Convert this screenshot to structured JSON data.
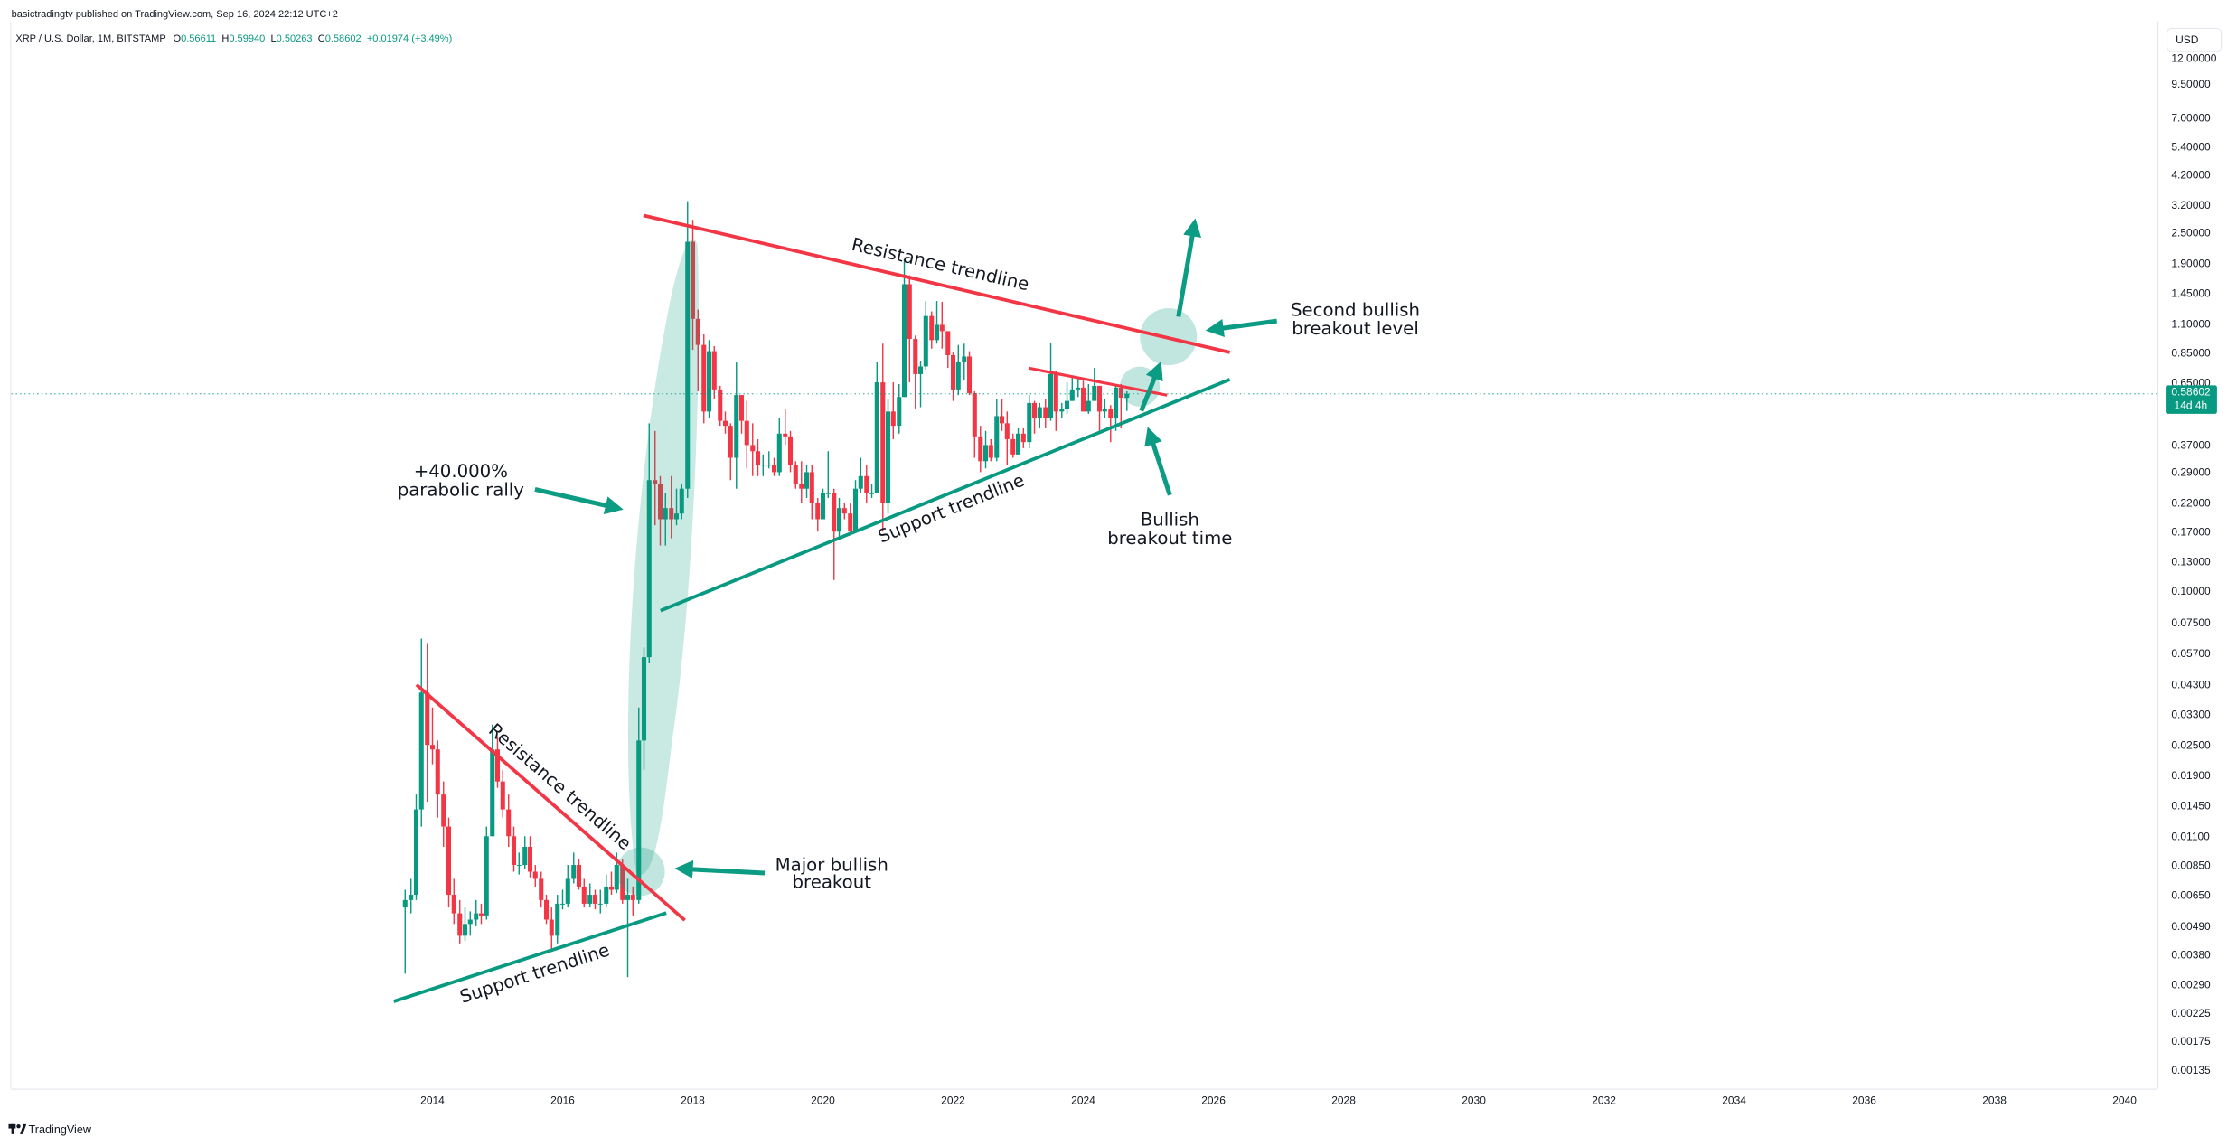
{
  "header": {
    "publisher": "basictradingtv published on TradingView.com, Sep 16, 2024 22:12 UTC+2",
    "symbol": "XRP / U.S. Dollar, 1M, BITSTAMP",
    "ohlc": [
      {
        "label": "O",
        "value": "0.56611"
      },
      {
        "label": "H",
        "value": "0.59940"
      },
      {
        "label": "L",
        "value": "0.50263"
      },
      {
        "label": "C",
        "value": "0.58602"
      }
    ],
    "change": "+0.01974 (+3.49%)"
  },
  "currency": "USD",
  "brand": "TradingView",
  "chart_data": {
    "type": "candlestick",
    "log_scale": true,
    "up_color": "#089981",
    "down_color": "#f23645",
    "xlim": [
      2007.53,
      2040.5
    ],
    "xticks": [
      2014,
      2016,
      2018,
      2020,
      2022,
      2024,
      2026,
      2028,
      2030,
      2032,
      2034,
      2036,
      2038,
      2040
    ],
    "ylim": [
      0.00114,
      16.66
    ],
    "yticks": [
      {
        "value": 12,
        "label": "12.00000"
      },
      {
        "value": 9.5,
        "label": "9.50000"
      },
      {
        "value": 7,
        "label": "7.00000"
      },
      {
        "value": 5.4,
        "label": "5.40000"
      },
      {
        "value": 4.2,
        "label": "4.20000"
      },
      {
        "value": 3.2,
        "label": "3.20000"
      },
      {
        "value": 2.5,
        "label": "2.50000"
      },
      {
        "value": 1.9,
        "label": "1.90000"
      },
      {
        "value": 1.45,
        "label": "1.45000"
      },
      {
        "value": 1.1,
        "label": "1.10000"
      },
      {
        "value": 0.85,
        "label": "0.85000"
      },
      {
        "value": 0.65,
        "label": "0.65000"
      },
      {
        "value": 0.37,
        "label": "0.37000"
      },
      {
        "value": 0.29,
        "label": "0.29000"
      },
      {
        "value": 0.22,
        "label": "0.22000"
      },
      {
        "value": 0.17,
        "label": "0.17000"
      },
      {
        "value": 0.13,
        "label": "0.13000"
      },
      {
        "value": 0.1,
        "label": "0.10000"
      },
      {
        "value": 0.075,
        "label": "0.07500"
      },
      {
        "value": 0.057,
        "label": "0.05700"
      },
      {
        "value": 0.043,
        "label": "0.04300"
      },
      {
        "value": 0.033,
        "label": "0.03300"
      },
      {
        "value": 0.025,
        "label": "0.02500"
      },
      {
        "value": 0.019,
        "label": "0.01900"
      },
      {
        "value": 0.0145,
        "label": "0.01450"
      },
      {
        "value": 0.011,
        "label": "0.01100"
      },
      {
        "value": 0.0085,
        "label": "0.00850"
      },
      {
        "value": 0.0065,
        "label": "0.00650"
      },
      {
        "value": 0.0049,
        "label": "0.00490"
      },
      {
        "value": 0.0038,
        "label": "0.00380"
      },
      {
        "value": 0.0029,
        "label": "0.00290"
      },
      {
        "value": 0.00225,
        "label": "0.00225"
      },
      {
        "value": 0.00175,
        "label": "0.00175"
      },
      {
        "value": 0.00135,
        "label": "0.00135"
      }
    ],
    "last_price": 0.58602,
    "countdown": "14d 4h",
    "x": [
      2013.58,
      2013.67,
      2013.75,
      2013.83,
      2013.92,
      2014,
      2014.08,
      2014.17,
      2014.25,
      2014.33,
      2014.42,
      2014.5,
      2014.58,
      2014.67,
      2014.75,
      2014.83,
      2014.92,
      2015,
      2015.08,
      2015.17,
      2015.25,
      2015.33,
      2015.42,
      2015.5,
      2015.58,
      2015.67,
      2015.75,
      2015.83,
      2015.92,
      2016,
      2016.08,
      2016.17,
      2016.25,
      2016.33,
      2016.42,
      2016.5,
      2016.58,
      2016.67,
      2016.75,
      2016.83,
      2016.92,
      2017,
      2017.08,
      2017.17,
      2017.25,
      2017.33,
      2017.42,
      2017.5,
      2017.58,
      2017.67,
      2017.75,
      2017.83,
      2017.92,
      2018,
      2018.08,
      2018.17,
      2018.25,
      2018.33,
      2018.42,
      2018.5,
      2018.58,
      2018.67,
      2018.75,
      2018.83,
      2018.92,
      2019,
      2019.08,
      2019.17,
      2019.25,
      2019.33,
      2019.42,
      2019.5,
      2019.58,
      2019.67,
      2019.75,
      2019.83,
      2019.92,
      2020,
      2020.08,
      2020.17,
      2020.25,
      2020.33,
      2020.42,
      2020.5,
      2020.58,
      2020.67,
      2020.75,
      2020.83,
      2020.92,
      2021,
      2021.08,
      2021.17,
      2021.25,
      2021.33,
      2021.42,
      2021.5,
      2021.58,
      2021.67,
      2021.75,
      2021.83,
      2021.92,
      2022,
      2022.08,
      2022.17,
      2022.25,
      2022.33,
      2022.42,
      2022.5,
      2022.58,
      2022.67,
      2022.75,
      2022.83,
      2022.92,
      2023,
      2023.08,
      2023.17,
      2023.25,
      2023.33,
      2023.42,
      2023.5,
      2023.58,
      2023.67,
      2023.75,
      2023.83,
      2023.92,
      2024,
      2024.08,
      2024.17,
      2024.25,
      2024.33,
      2024.42,
      2024.5,
      2024.58,
      2024.67
    ],
    "open": [
      0.0058,
      0.0062,
      0.0065,
      0.014,
      0.04,
      0.025,
      0.024,
      0.016,
      0.012,
      0.0065,
      0.0055,
      0.0045,
      0.005,
      0.0052,
      0.0055,
      0.0054,
      0.011,
      0.024,
      0.018,
      0.014,
      0.011,
      0.0085,
      0.0085,
      0.01,
      0.008,
      0.0075,
      0.0062,
      0.0052,
      0.0045,
      0.006,
      0.006,
      0.0075,
      0.0085,
      0.007,
      0.006,
      0.0065,
      0.006,
      0.006,
      0.007,
      0.0068,
      0.0085,
      0.0062,
      0.0065,
      0.0062,
      0.026,
      0.055,
      0.27,
      0.26,
      0.19,
      0.21,
      0.19,
      0.2,
      0.25,
      2.3,
      1.15,
      0.91,
      0.5,
      0.86,
      0.61,
      0.46,
      0.44,
      0.33,
      0.58,
      0.46,
      0.37,
      0.35,
      0.31,
      0.31,
      0.31,
      0.29,
      0.41,
      0.4,
      0.31,
      0.26,
      0.25,
      0.29,
      0.22,
      0.19,
      0.24,
      0.24,
      0.17,
      0.21,
      0.2,
      0.17,
      0.25,
      0.28,
      0.24,
      0.24,
      0.65,
      0.22,
      0.5,
      0.44,
      0.57,
      1.57,
      0.96,
      0.7,
      0.75,
      1.18,
      0.95,
      1.09,
      1.03,
      0.83,
      0.61,
      0.78,
      0.82,
      0.59,
      0.4,
      0.32,
      0.37,
      0.33,
      0.48,
      0.45,
      0.39,
      0.34,
      0.41,
      0.38,
      0.54,
      0.47,
      0.52,
      0.47,
      0.7,
      0.5,
      0.51,
      0.55,
      0.61,
      0.62,
      0.5,
      0.55,
      0.63,
      0.5,
      0.51,
      0.47,
      0.62,
      0.56611
    ],
    "high": [
      0.0068,
      0.0075,
      0.016,
      0.065,
      0.062,
      0.035,
      0.026,
      0.018,
      0.013,
      0.0075,
      0.0062,
      0.0058,
      0.0056,
      0.0062,
      0.006,
      0.012,
      0.03,
      0.027,
      0.02,
      0.016,
      0.012,
      0.0095,
      0.011,
      0.011,
      0.0085,
      0.008,
      0.0065,
      0.0058,
      0.0065,
      0.0068,
      0.0085,
      0.0095,
      0.009,
      0.0075,
      0.0072,
      0.0068,
      0.0068,
      0.0078,
      0.008,
      0.0095,
      0.009,
      0.0075,
      0.007,
      0.035,
      0.06,
      0.45,
      0.42,
      0.28,
      0.24,
      0.28,
      0.25,
      0.26,
      3.31,
      2.8,
      1.25,
      1.0,
      0.95,
      0.9,
      0.63,
      0.5,
      0.45,
      0.78,
      0.58,
      0.55,
      0.45,
      0.39,
      0.34,
      0.35,
      0.33,
      0.47,
      0.51,
      0.42,
      0.32,
      0.32,
      0.31,
      0.31,
      0.23,
      0.25,
      0.35,
      0.25,
      0.23,
      0.22,
      0.22,
      0.27,
      0.33,
      0.31,
      0.26,
      0.78,
      0.92,
      0.56,
      0.65,
      0.64,
      1.96,
      1.7,
      0.99,
      0.79,
      1.35,
      1.23,
      1.35,
      1.34,
      1.0,
      0.85,
      0.91,
      0.92,
      0.86,
      0.6,
      0.44,
      0.42,
      0.39,
      0.56,
      0.56,
      0.5,
      0.41,
      0.43,
      0.43,
      0.58,
      0.55,
      0.54,
      0.56,
      0.93,
      0.72,
      0.54,
      0.65,
      0.69,
      0.67,
      0.66,
      0.64,
      0.74,
      0.63,
      0.56,
      0.53,
      0.64,
      0.64,
      0.5994
    ],
    "low": [
      0.0032,
      0.0055,
      0.0062,
      0.012,
      0.015,
      0.021,
      0.013,
      0.01,
      0.0058,
      0.005,
      0.0042,
      0.0043,
      0.0045,
      0.0049,
      0.005,
      0.0052,
      0.011,
      0.017,
      0.013,
      0.01,
      0.008,
      0.0078,
      0.0082,
      0.0076,
      0.007,
      0.0058,
      0.005,
      0.004,
      0.0042,
      0.0057,
      0.0058,
      0.0072,
      0.0068,
      0.0058,
      0.0058,
      0.0057,
      0.0055,
      0.0058,
      0.0065,
      0.0066,
      0.006,
      0.0031,
      0.0054,
      0.006,
      0.02,
      0.052,
      0.18,
      0.15,
      0.15,
      0.16,
      0.18,
      0.19,
      0.23,
      0.87,
      0.6,
      0.45,
      0.47,
      0.56,
      0.44,
      0.41,
      0.27,
      0.25,
      0.41,
      0.3,
      0.28,
      0.28,
      0.28,
      0.3,
      0.28,
      0.28,
      0.37,
      0.29,
      0.25,
      0.22,
      0.23,
      0.19,
      0.17,
      0.19,
      0.23,
      0.11,
      0.16,
      0.19,
      0.17,
      0.17,
      0.24,
      0.22,
      0.23,
      0.24,
      0.17,
      0.2,
      0.39,
      0.41,
      0.57,
      0.65,
      0.51,
      0.52,
      0.73,
      0.88,
      0.92,
      0.88,
      0.74,
      0.55,
      0.58,
      0.66,
      0.58,
      0.33,
      0.29,
      0.3,
      0.32,
      0.32,
      0.42,
      0.31,
      0.33,
      0.34,
      0.36,
      0.36,
      0.41,
      0.43,
      0.43,
      0.46,
      0.42,
      0.47,
      0.49,
      0.55,
      0.57,
      0.5,
      0.49,
      0.55,
      0.42,
      0.47,
      0.38,
      0.42,
      0.43,
      0.50263
    ],
    "close": [
      0.0062,
      0.0065,
      0.014,
      0.04,
      0.025,
      0.024,
      0.016,
      0.012,
      0.0065,
      0.0055,
      0.0045,
      0.005,
      0.0052,
      0.0055,
      0.0054,
      0.011,
      0.024,
      0.018,
      0.014,
      0.011,
      0.0085,
      0.0085,
      0.01,
      0.008,
      0.0075,
      0.0062,
      0.0052,
      0.0045,
      0.006,
      0.006,
      0.0075,
      0.0085,
      0.007,
      0.006,
      0.0065,
      0.006,
      0.006,
      0.007,
      0.0068,
      0.0085,
      0.0062,
      0.0065,
      0.0062,
      0.026,
      0.055,
      0.27,
      0.26,
      0.19,
      0.21,
      0.19,
      0.2,
      0.25,
      2.3,
      1.15,
      0.91,
      0.5,
      0.86,
      0.61,
      0.46,
      0.44,
      0.33,
      0.58,
      0.46,
      0.37,
      0.35,
      0.31,
      0.31,
      0.31,
      0.29,
      0.41,
      0.4,
      0.31,
      0.26,
      0.25,
      0.29,
      0.22,
      0.19,
      0.24,
      0.24,
      0.17,
      0.21,
      0.2,
      0.17,
      0.25,
      0.28,
      0.24,
      0.24,
      0.65,
      0.22,
      0.5,
      0.44,
      0.57,
      1.57,
      0.96,
      0.7,
      0.75,
      1.18,
      0.95,
      1.09,
      1.03,
      0.83,
      0.61,
      0.78,
      0.82,
      0.59,
      0.4,
      0.32,
      0.37,
      0.33,
      0.48,
      0.45,
      0.39,
      0.34,
      0.41,
      0.38,
      0.54,
      0.47,
      0.52,
      0.47,
      0.7,
      0.5,
      0.51,
      0.55,
      0.61,
      0.62,
      0.5,
      0.55,
      0.63,
      0.5,
      0.51,
      0.47,
      0.62,
      0.56611,
      0.58602
    ],
    "annotations": [
      {
        "lines": [
          "Resistance trendline"
        ]
      },
      {
        "lines": [
          "Support trendline"
        ]
      },
      {
        "lines": [
          "Resistance trendline"
        ]
      },
      {
        "lines": [
          "Support trendline"
        ]
      },
      {
        "lines": [
          "+40.000%",
          "parabolic rally"
        ]
      },
      {
        "lines": [
          "Major bullish",
          "breakout"
        ]
      },
      {
        "lines": [
          "Second bullish",
          "breakout level"
        ]
      },
      {
        "lines": [
          "Bullish",
          "breakout time"
        ]
      }
    ]
  }
}
